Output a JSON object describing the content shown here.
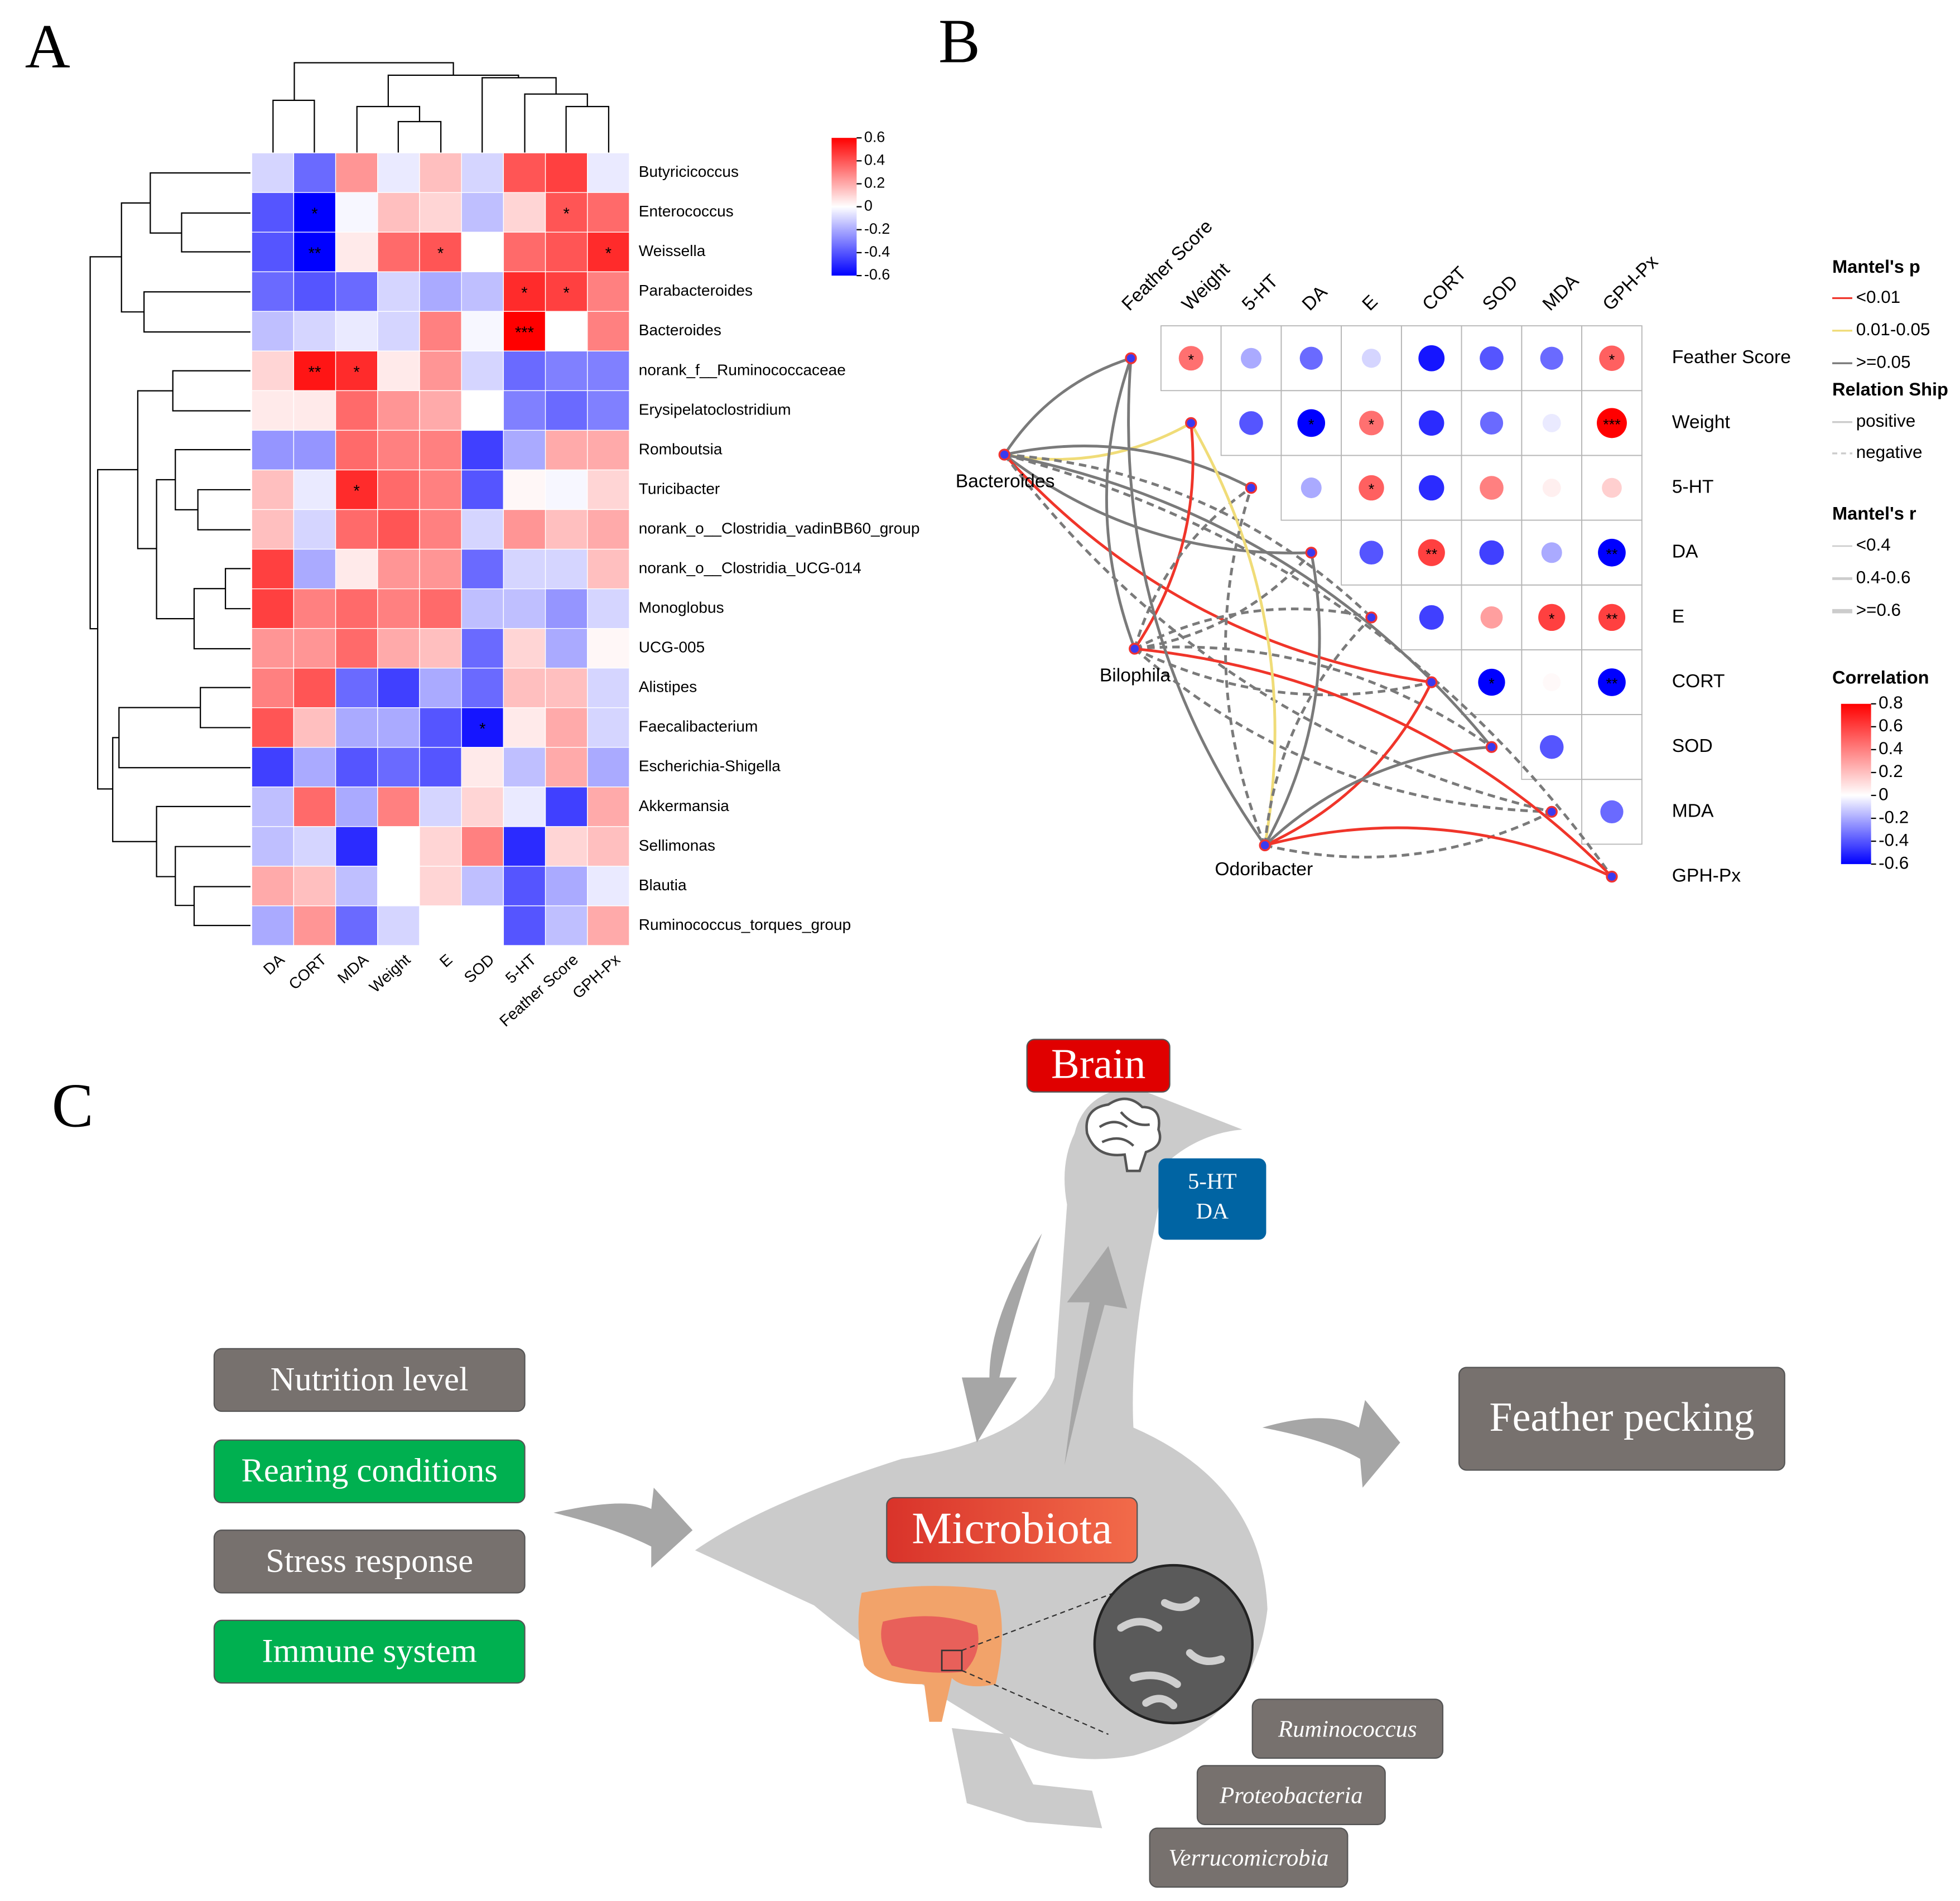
{
  "panel_labels": [
    "A",
    "B",
    "C"
  ],
  "chart_data": [
    {
      "type": "heatmap",
      "columns": [
        "DA",
        "CORT",
        "MDA",
        "Weight",
        "E",
        "SOD",
        "5-HT",
        "Feather Score",
        "GPH-Px"
      ],
      "rows": [
        "Butyricicoccus",
        "Enterococcus",
        "Weissella",
        "Parabacteroides",
        "Bacteroides",
        "norank_f__Ruminococcaceae",
        "Erysipelatoclostridium",
        "Romboutsia",
        "Turicibacter",
        "norank_o__Clostridia_vadinBB60_group",
        "norank_o__Clostridia_UCG-014",
        "Monoglobus",
        "UCG-005",
        "Alistipes",
        "Faecalibacterium",
        "Escherichia-Shigella",
        "Akkermansia",
        "Sellimonas",
        "Blautia",
        "Ruminococcus_torques_group"
      ],
      "values": [
        [
          -0.1,
          -0.35,
          0.25,
          -0.05,
          0.15,
          -0.1,
          0.4,
          0.45,
          -0.05
        ],
        [
          -0.4,
          -0.6,
          -0.02,
          0.15,
          0.1,
          -0.15,
          0.1,
          0.4,
          0.35
        ],
        [
          -0.4,
          -0.65,
          0.05,
          0.35,
          0.4,
          0,
          0.35,
          0.4,
          0.5
        ],
        [
          -0.35,
          -0.4,
          -0.35,
          -0.1,
          -0.2,
          -0.15,
          0.5,
          0.45,
          0.3
        ],
        [
          -0.15,
          -0.1,
          -0.05,
          -0.1,
          0.3,
          -0.02,
          0.6,
          0,
          0.3
        ],
        [
          0.1,
          0.55,
          0.5,
          0.05,
          0.25,
          -0.1,
          -0.35,
          -0.3,
          -0.3
        ],
        [
          0.05,
          0.05,
          0.35,
          0.25,
          0.2,
          0,
          -0.3,
          -0.35,
          -0.3
        ],
        [
          -0.25,
          -0.25,
          0.35,
          0.3,
          0.3,
          -0.45,
          -0.2,
          0.2,
          0.2
        ],
        [
          0.15,
          -0.05,
          0.5,
          0.35,
          0.3,
          -0.4,
          0.02,
          -0.02,
          0.1
        ],
        [
          0.15,
          -0.1,
          0.35,
          0.4,
          0.3,
          -0.1,
          0.25,
          0.15,
          0.2
        ],
        [
          0.45,
          -0.2,
          0.05,
          0.25,
          0.25,
          -0.35,
          -0.1,
          -0.1,
          0.15
        ],
        [
          0.45,
          0.3,
          0.35,
          0.3,
          0.35,
          -0.15,
          -0.15,
          -0.25,
          -0.1
        ],
        [
          0.25,
          0.25,
          0.35,
          0.2,
          0.15,
          -0.35,
          0.1,
          -0.2,
          0.02
        ],
        [
          0.3,
          0.4,
          -0.35,
          -0.45,
          -0.2,
          -0.35,
          0.15,
          0.15,
          -0.1
        ],
        [
          0.4,
          0.15,
          -0.2,
          -0.2,
          -0.4,
          -0.55,
          0.05,
          0.2,
          -0.1
        ],
        [
          -0.45,
          -0.2,
          -0.4,
          -0.35,
          -0.4,
          0.05,
          -0.15,
          0.2,
          -0.2
        ],
        [
          -0.15,
          0.35,
          -0.2,
          0.3,
          -0.1,
          0.1,
          -0.05,
          -0.45,
          0.2
        ],
        [
          -0.15,
          -0.1,
          -0.5,
          0,
          0.1,
          0.3,
          -0.5,
          0.1,
          0.15
        ],
        [
          0.2,
          0.15,
          -0.15,
          0,
          0.1,
          -0.15,
          -0.4,
          -0.2,
          -0.05
        ],
        [
          -0.2,
          0.25,
          -0.35,
          -0.1,
          0,
          0,
          -0.4,
          -0.15,
          0.2
        ]
      ],
      "annotations": [
        [
          null,
          null,
          null,
          null,
          null,
          null,
          null,
          null,
          null
        ],
        [
          null,
          "*",
          null,
          null,
          null,
          null,
          null,
          "*",
          null
        ],
        [
          null,
          "**",
          null,
          null,
          "*",
          null,
          null,
          null,
          "*"
        ],
        [
          null,
          null,
          null,
          null,
          null,
          null,
          "*",
          "*",
          null
        ],
        [
          null,
          null,
          null,
          null,
          null,
          null,
          "***",
          null,
          null
        ],
        [
          null,
          "**",
          "*",
          null,
          null,
          null,
          null,
          null,
          null
        ],
        [
          null,
          null,
          null,
          null,
          null,
          null,
          null,
          null,
          null
        ],
        [
          null,
          null,
          null,
          null,
          null,
          null,
          null,
          null,
          null
        ],
        [
          null,
          null,
          "*",
          null,
          null,
          null,
          null,
          null,
          null
        ],
        [
          null,
          null,
          null,
          null,
          null,
          null,
          null,
          null,
          null
        ],
        [
          null,
          null,
          null,
          null,
          null,
          null,
          null,
          null,
          null
        ],
        [
          null,
          null,
          null,
          null,
          null,
          null,
          null,
          null,
          null
        ],
        [
          null,
          null,
          null,
          null,
          null,
          null,
          null,
          null,
          null
        ],
        [
          null,
          null,
          null,
          null,
          null,
          null,
          null,
          null,
          null
        ],
        [
          null,
          null,
          null,
          null,
          null,
          "*",
          null,
          null,
          null
        ],
        [
          null,
          null,
          null,
          null,
          null,
          null,
          null,
          null,
          null
        ],
        [
          null,
          null,
          null,
          null,
          null,
          null,
          null,
          null,
          null
        ],
        [
          null,
          null,
          null,
          null,
          null,
          null,
          null,
          null,
          null
        ],
        [
          null,
          null,
          null,
          null,
          null,
          null,
          null,
          null,
          null
        ],
        [
          null,
          null,
          null,
          null,
          null,
          null,
          null,
          null,
          null
        ]
      ],
      "clim": [
        -0.6,
        0.6
      ],
      "cticks": [
        0.6,
        0.4,
        0.2,
        0,
        -0.2,
        -0.4,
        -0.6
      ],
      "colors": [
        "#0000ff",
        "#ffffff",
        "#ff0000"
      ]
    },
    {
      "type": "mantel",
      "variables": [
        "Feather Score",
        "Weight",
        "5-HT",
        "DA",
        "E",
        "CORT",
        "SOD",
        "MDA",
        "GPH-Px"
      ],
      "values": [
        [
          null,
          0.45,
          -0.2,
          -0.35,
          -0.1,
          -0.55,
          -0.4,
          -0.35,
          0.5
        ],
        [
          null,
          null,
          -0.4,
          -0.65,
          0.45,
          -0.5,
          -0.35,
          -0.05,
          0.8
        ],
        [
          null,
          null,
          null,
          -0.2,
          0.5,
          -0.5,
          0.4,
          0.05,
          0.15
        ],
        [
          null,
          null,
          null,
          null,
          -0.4,
          0.6,
          -0.45,
          -0.2,
          -0.65
        ],
        [
          null,
          null,
          null,
          null,
          null,
          -0.45,
          0.3,
          0.6,
          0.6
        ],
        [
          null,
          null,
          null,
          null,
          null,
          null,
          -0.6,
          0.02,
          -0.65
        ],
        [
          null,
          null,
          null,
          null,
          null,
          null,
          null,
          -0.4,
          0
        ],
        [
          null,
          null,
          null,
          null,
          null,
          null,
          null,
          null,
          -0.35
        ],
        [
          null,
          null,
          null,
          null,
          null,
          null,
          null,
          null,
          null
        ]
      ],
      "annotations": [
        [
          null,
          "*",
          null,
          null,
          null,
          null,
          null,
          null,
          "*"
        ],
        [
          null,
          null,
          null,
          "*",
          "*",
          null,
          null,
          null,
          "***"
        ],
        [
          null,
          null,
          null,
          null,
          "*",
          null,
          null,
          null,
          null
        ],
        [
          null,
          null,
          null,
          null,
          null,
          "**",
          null,
          null,
          "**"
        ],
        [
          null,
          null,
          null,
          null,
          null,
          null,
          null,
          "*",
          "**"
        ],
        [
          null,
          null,
          null,
          null,
          null,
          null,
          "*",
          null,
          "**"
        ],
        [
          null,
          null,
          null,
          null,
          null,
          null,
          null,
          null,
          null
        ],
        [
          null,
          null,
          null,
          null,
          null,
          null,
          null,
          null,
          null
        ],
        [
          null,
          null,
          null,
          null,
          null,
          null,
          null,
          null,
          null
        ]
      ],
      "taxa": [
        "Bacteroides",
        "Bilophila",
        "Odoribacter"
      ],
      "mantel_p": [
        [
          2,
          1,
          2,
          2,
          2,
          0,
          2,
          2,
          2
        ],
        [
          2,
          0,
          2,
          2,
          2,
          2,
          2,
          2,
          0
        ],
        [
          2,
          1,
          2,
          2,
          2,
          0,
          2,
          2,
          0
        ]
      ],
      "mantel_r": [
        [
          1,
          1,
          1,
          1,
          1,
          1,
          1,
          1,
          1
        ],
        [
          1,
          1,
          1,
          1,
          1,
          1,
          1,
          1,
          1
        ],
        [
          1,
          1,
          1,
          1,
          1,
          1,
          1,
          1,
          1
        ]
      ],
      "relation": [
        [
          0,
          0,
          0,
          0,
          1,
          0,
          0,
          1,
          1
        ],
        [
          0,
          0,
          1,
          1,
          1,
          1,
          1,
          1,
          0
        ],
        [
          0,
          0,
          1,
          0,
          1,
          0,
          0,
          1,
          0
        ]
      ],
      "legend": {
        "corner": "right",
        "p_title": "Mantel's p",
        "p_classes": [
          {
            "label": "<0.01",
            "color": "#f0352a"
          },
          {
            "label": "0.01-0.05",
            "color": "#f0dc78"
          },
          {
            "label": ">=0.05",
            "color": "#7a7a7a"
          }
        ],
        "relation_title": "Relation Ship",
        "relations": [
          "positive",
          "negative"
        ],
        "r_title": "Mantel's r",
        "r_classes": [
          {
            "label": "<0.4",
            "width": 1.2
          },
          {
            "label": "0.4-0.6",
            "width": 2.2
          },
          {
            "label": ">=0.6",
            "width": 3.4
          }
        ],
        "corr_title": "Correlation"
      },
      "clim": [
        -0.6,
        0.8
      ],
      "cticks": [
        0.8,
        0.6,
        0.4,
        0.2,
        0,
        -0.2,
        -0.4,
        -0.6
      ],
      "colors": [
        "#0000ff",
        "#ffffff",
        "#ff0000"
      ]
    }
  ],
  "diagram": {
    "brain": "Brain",
    "neuro": [
      "5-HT",
      "DA"
    ],
    "factors": [
      {
        "label": "Nutrition level",
        "color": "#77716e"
      },
      {
        "label": "Rearing conditions",
        "color": "#00b050"
      },
      {
        "label": "Stress response",
        "color": "#77716e"
      },
      {
        "label": "Immune system",
        "color": "#00b050"
      }
    ],
    "microbiota": "Microbiota",
    "outcome": "Feather pecking",
    "taxa": [
      "Ruminococcus",
      "Proteobacteria",
      "Verrucomicrobia"
    ]
  }
}
